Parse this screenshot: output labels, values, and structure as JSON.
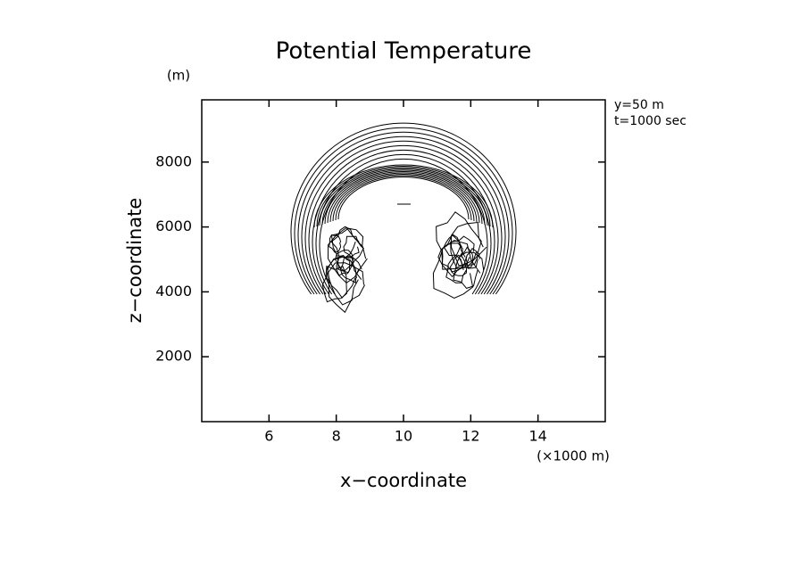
{
  "chart_data": {
    "type": "contour",
    "title": "Potential Temperature",
    "x_label": "x−coordinate",
    "y_label": "z−coordinate",
    "x_unit": "(×1000 m)",
    "y_unit": "(m)",
    "annotations": [
      "y=50 m",
      "t=1000 sec"
    ],
    "xlim": [
      4,
      16
    ],
    "ylim": [
      0,
      10000
    ],
    "xticks": [
      6,
      8,
      10,
      12,
      14
    ],
    "yticks": [
      2000,
      4000,
      6000,
      8000
    ],
    "color": "#000000"
  }
}
